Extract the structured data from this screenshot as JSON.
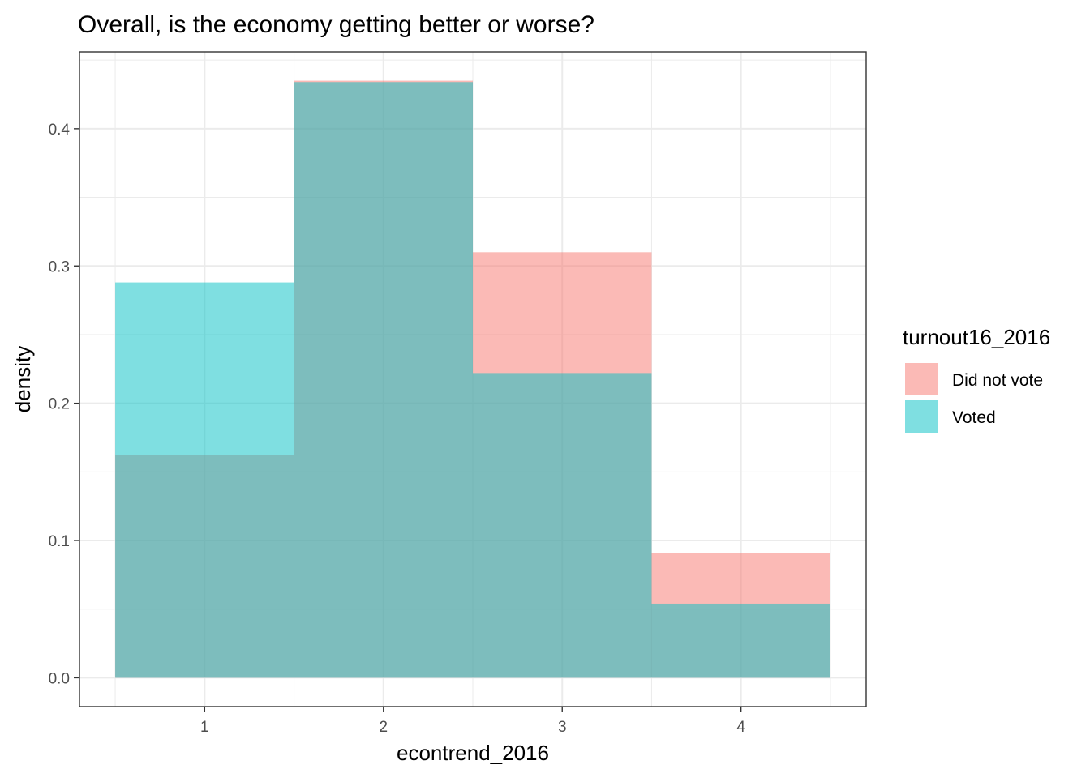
{
  "chart_data": {
    "type": "bar",
    "title": "Overall, is the economy getting better or worse?",
    "xlabel": "econtrend_2016",
    "ylabel": "density",
    "xlim": [
      0.3,
      4.7
    ],
    "ylim": [
      -0.021,
      0.456
    ],
    "x_ticks": [
      1,
      2,
      3,
      4
    ],
    "y_ticks": [
      0.0,
      0.1,
      0.2,
      0.3,
      0.4
    ],
    "y_tick_labels": [
      "0.0",
      "0.1",
      "0.2",
      "0.3",
      "0.4"
    ],
    "bin_width": 1,
    "categories": [
      1,
      2,
      3,
      4
    ],
    "series": [
      {
        "name": "Did not vote",
        "color": "#F8766D",
        "values": [
          0.162,
          0.435,
          0.31,
          0.091
        ]
      },
      {
        "name": "Voted",
        "color": "#00BFC4",
        "values": [
          0.288,
          0.434,
          0.222,
          0.054
        ]
      }
    ],
    "legend": {
      "title": "turnout16_2016",
      "position": "right"
    },
    "grid": true,
    "fill_alpha": 0.5,
    "theme": "bw"
  }
}
